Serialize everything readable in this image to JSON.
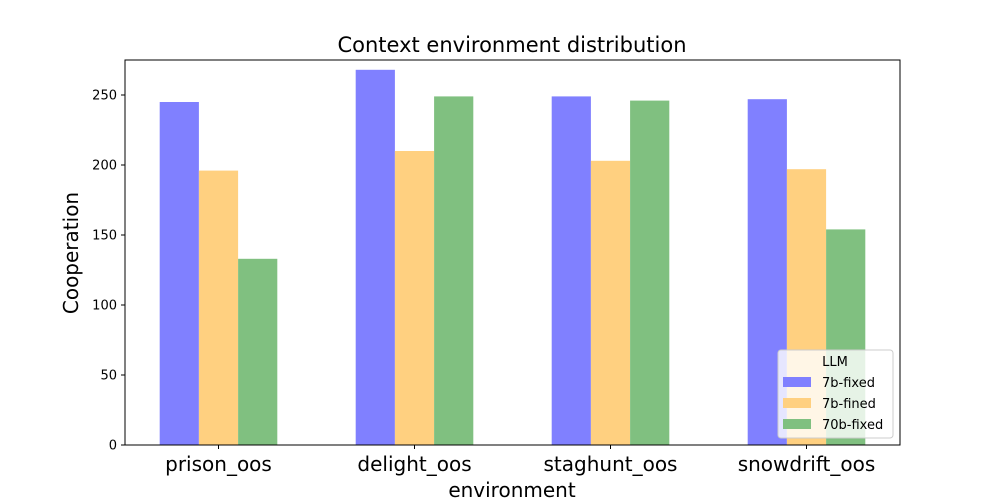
{
  "chart_data": {
    "type": "bar",
    "title": "Context environment distribution",
    "xlabel": "environment",
    "ylabel": "Cooperation",
    "categories": [
      "prison_oos",
      "delight_oos",
      "staghunt_oos",
      "snowdrift_oos"
    ],
    "series": [
      {
        "name": "7b-fixed",
        "color": "#8080ff",
        "values": [
          245,
          268,
          249,
          247
        ]
      },
      {
        "name": "7b-fined",
        "color": "#ffd080",
        "values": [
          196,
          210,
          203,
          197
        ]
      },
      {
        "name": "70b-fixed",
        "color": "#80c080",
        "values": [
          133,
          249,
          246,
          154
        ]
      }
    ],
    "ylim": [
      0,
      275
    ],
    "yticks": [
      "0",
      "50",
      "100",
      "150",
      "200",
      "250"
    ],
    "grid": false,
    "legend": {
      "title": "LLM",
      "position": "lower-right"
    }
  }
}
